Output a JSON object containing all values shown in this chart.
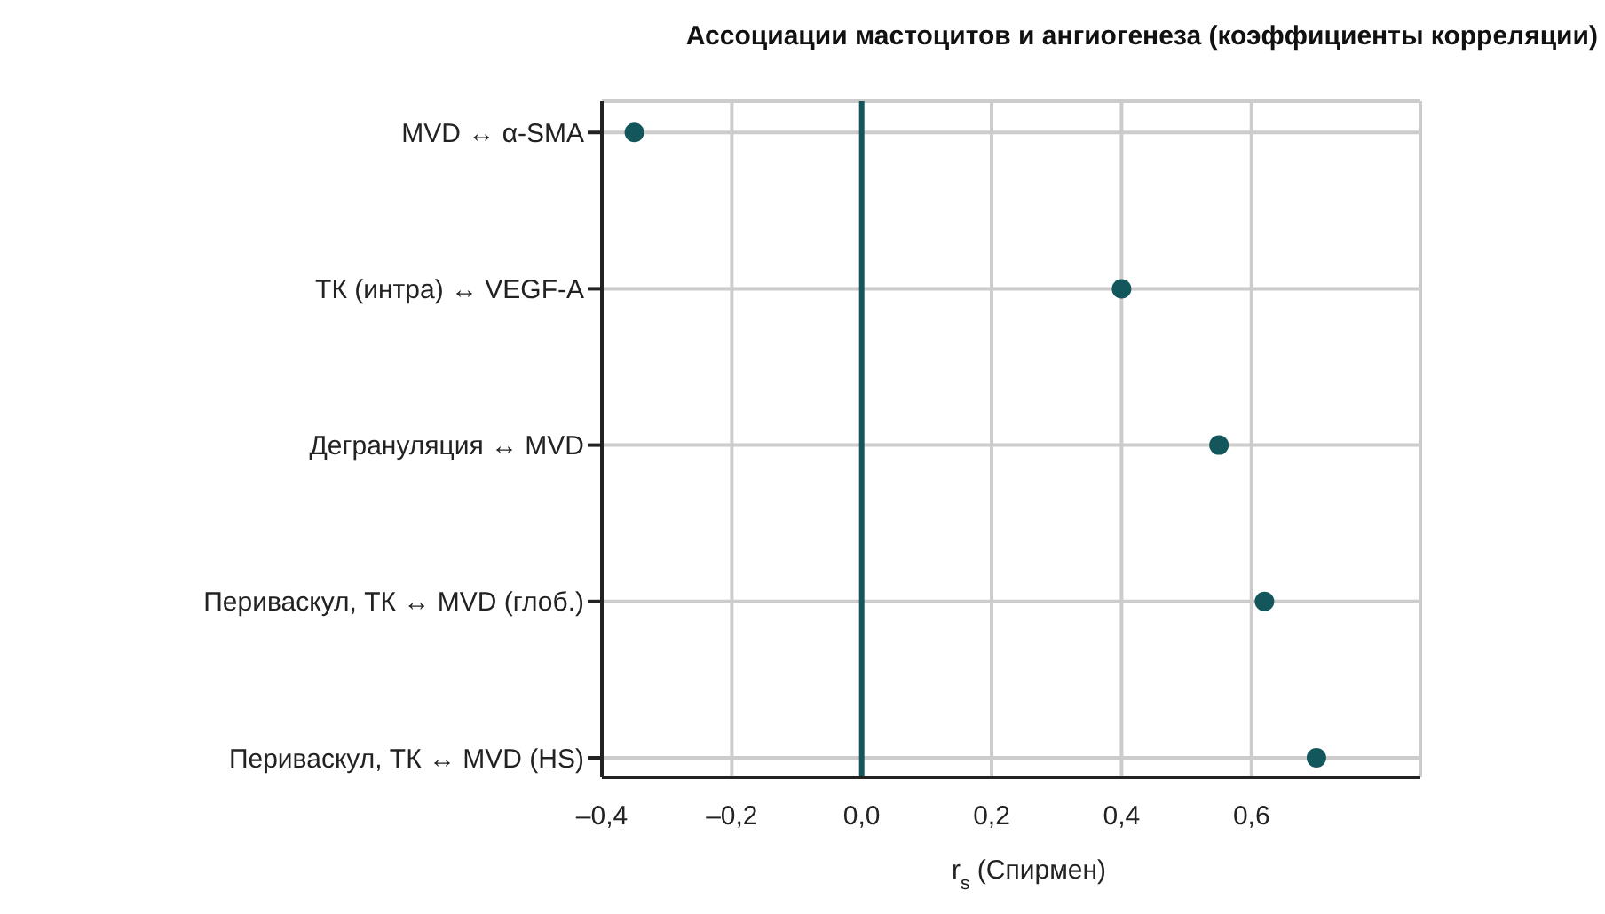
{
  "chart_data": {
    "type": "scatter",
    "title": "Ассоциации мастоцитов и ангиогенеза (коэффициенты корреляции)",
    "xlabel": "r$_{s}$ (Спирмен)",
    "categories": [
      "MVD ↔ α-SMA",
      "ТК (интра) ↔ VEGF-A",
      "Дегрануляция ↔ MVD",
      "Периваскул, ТК ↔ MVD (глоб.)",
      "Периваскул, ТК ↔ MVD (HS)"
    ],
    "orientation": "horizontal",
    "values": [
      -0.35,
      0.4,
      0.55,
      0.62,
      0.7
    ],
    "color": "#13565b",
    "marker": "circle",
    "xlim": [
      -0.4,
      0.86
    ],
    "xticks": [
      {
        "value": -0.4,
        "label": "–0,4"
      },
      {
        "value": -0.2,
        "label": "–0,2"
      },
      {
        "value": 0,
        "label": "0,0"
      },
      {
        "value": 0.2,
        "label": "0,2"
      },
      {
        "value": 0.4,
        "label": "0,4"
      },
      {
        "value": 0.6,
        "label": "0,6"
      }
    ],
    "grid": true,
    "ref_lines": [
      {
        "axis": "x",
        "value": 0,
        "color": "#13565b"
      }
    ]
  }
}
